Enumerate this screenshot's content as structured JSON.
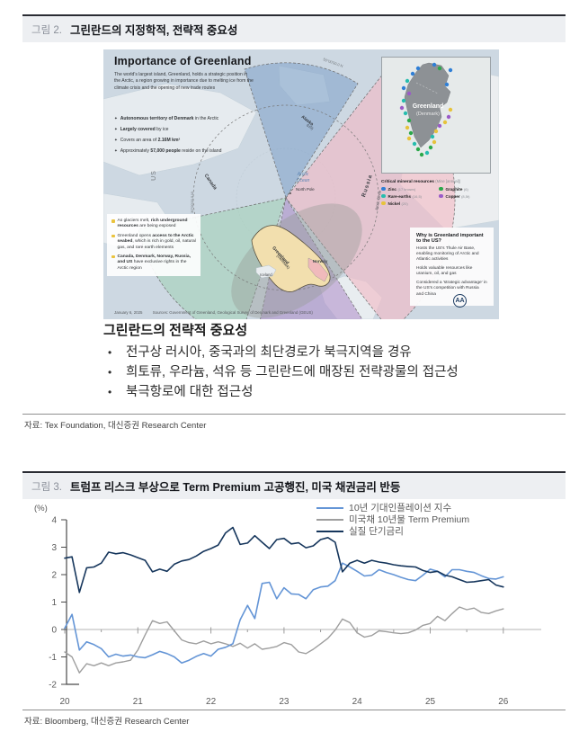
{
  "figure2": {
    "label": "그림 2.",
    "title": "그린란드의 지정학적, 전략적 중요성",
    "source": "자료: Tex Foundation, 대신증권 Research Center",
    "infographic": {
      "title": "Importance of Greenland",
      "intro": "The world's largest island, Greenland, holds a strategic position in the Arctic, a region growing in importance due to melting ice from the climate crisis and the opening of new trade routes",
      "facts": [
        {
          "pre": "",
          "bold": "Autonomous territory of Denmark",
          "rest": " in the Arctic"
        },
        {
          "pre": "",
          "bold": "Largely covered",
          "rest": " by ice"
        },
        {
          "pre": "Covers an area of ",
          "bold": "2.16M km²",
          "rest": ""
        },
        {
          "pre": "Approximately ",
          "bold": "57,000 people",
          "rest": " reside on the island"
        }
      ],
      "notes": [
        {
          "pre": "As glaciers melt, ",
          "bold": "rich underground resources",
          "rest": " are being exposed"
        },
        {
          "pre": "Greenland opens ",
          "bold": "access to the Arctic seabed",
          "rest": ", which is rich in gold, oil, natural gas, and rare earth elements"
        },
        {
          "pre": "",
          "bold": "Canada, Denmark, Norway, Russia, and US",
          "rest": " have exclusive rights in the Arctic region"
        }
      ],
      "map_labels": {
        "us": "US",
        "canada": "Canada",
        "alaska1": "Alaska",
        "alaska2": "(US)",
        "russia": "Russia",
        "norway": "Norway",
        "iceland": "Iceland",
        "north_pole": "North Pole",
        "arctic1": "Arctic",
        "arctic2": "Ocean",
        "arctic_circle": "Arctic Circle",
        "lon": "30°00'00.0 W",
        "lat": "50°00'00.0 N",
        "greenland1": "Greenland",
        "greenland2": "(Denmark)"
      },
      "inset": {
        "label1": "Greenland",
        "label2": "(Denmark)"
      },
      "mineral_legend": {
        "title": "Critical mineral resources",
        "suffix": "(Mine [annual])",
        "items": [
          {
            "name": "Zinc",
            "suffix": "(17 known)",
            "color": "#2f7fd6"
          },
          {
            "name": "Graphite",
            "suffix": "(6)",
            "color": "#2ba84a"
          },
          {
            "name": "Rare-earths",
            "suffix": "(16,5)",
            "color": "#27bdae"
          },
          {
            "name": "Copper",
            "suffix": "(8,5t)",
            "color": "#9a5bc8"
          },
          {
            "name": "Nickel",
            "suffix": "(20)",
            "color": "#e6c33c"
          }
        ]
      },
      "why_box": {
        "title": "Why is Greenland important to the US?",
        "p1": "Hosts the US's Thule Air Base, enabling monitoring of Arctic and Atlantic activities",
        "p2": "Holds valuable resources like uranium, oil, and gas",
        "p3": "Considered a 'strategic advantage' in the US's competition with Russia and China"
      },
      "date": "January 6, 2025",
      "sources": "Sources: Government of Greenland, Geological Survey of Denmark and Greenland (GEUS)",
      "logo": "AA"
    },
    "summary": {
      "heading": "그린란드의 전략적 중요성",
      "bullets": [
        "전구상 러시아, 중국과의 최단경로가 북극지역을 경유",
        "희토류, 우라늄, 석유 등 그린란드에 매장된 전략광물의 접근성",
        "북극항로에 대한 접근성"
      ]
    }
  },
  "figure3": {
    "label": "그림 3.",
    "title": "트럼프 리스크 부상으로 Term Premium 고공행진, 미국 채권금리 반등",
    "source": "자료: Bloomberg, 대신증권 Research Center"
  },
  "chart_data": {
    "type": "line",
    "unit_label": "(%)",
    "xlabel": "",
    "ylabel": "(%)",
    "xlim": [
      20,
      26.55
    ],
    "ylim": [
      -2,
      4
    ],
    "x_ticks": [
      20,
      21,
      22,
      23,
      24,
      25,
      26
    ],
    "y_ticks": [
      -2,
      -1,
      0,
      1,
      2,
      3,
      4
    ],
    "grid": "zero-line-only",
    "legend_position": "top-right",
    "x": [
      20.0,
      20.1,
      20.2,
      20.3,
      20.4,
      20.5,
      20.6,
      20.7,
      20.8,
      20.9,
      21.0,
      21.1,
      21.2,
      21.3,
      21.4,
      21.5,
      21.6,
      21.7,
      21.8,
      21.9,
      22.0,
      22.1,
      22.2,
      22.3,
      22.4,
      22.5,
      22.6,
      22.7,
      22.8,
      22.9,
      23.0,
      23.1,
      23.2,
      23.3,
      23.4,
      23.5,
      23.6,
      23.7,
      23.8,
      23.9,
      24.0,
      24.1,
      24.2,
      24.3,
      24.4,
      24.5,
      24.6,
      24.7,
      24.8,
      24.9,
      25.0,
      25.1,
      25.2,
      25.3,
      25.4,
      25.5,
      25.6,
      25.7,
      25.8,
      25.9,
      26.0
    ],
    "series": [
      {
        "name": "10년 기대인플레이션 지수",
        "color": "#6495d6",
        "values": [
          0.05,
          0.55,
          -0.75,
          -0.45,
          -0.55,
          -0.7,
          -1.0,
          -0.9,
          -0.97,
          -0.93,
          -1.0,
          -1.03,
          -0.92,
          -0.8,
          -0.88,
          -1.0,
          -1.22,
          -1.12,
          -0.98,
          -0.88,
          -0.97,
          -0.72,
          -0.65,
          -0.52,
          0.35,
          0.88,
          0.4,
          1.68,
          1.72,
          1.12,
          1.52,
          1.3,
          1.28,
          1.12,
          1.45,
          1.55,
          1.58,
          1.78,
          2.42,
          2.28,
          2.12,
          1.95,
          1.98,
          2.18,
          2.08,
          2.0,
          1.9,
          1.82,
          1.78,
          1.98,
          2.2,
          2.12,
          1.92,
          2.18,
          2.18,
          2.12,
          2.08,
          1.96,
          1.86,
          1.84,
          1.92
        ]
      },
      {
        "name": "미국채 10년물 Term Premium",
        "color": "#9e9e9e",
        "values": [
          -0.82,
          -1.0,
          -1.58,
          -1.25,
          -1.32,
          -1.22,
          -1.32,
          -1.22,
          -1.18,
          -1.12,
          -0.75,
          -0.2,
          0.32,
          0.22,
          0.28,
          -0.05,
          -0.38,
          -0.48,
          -0.52,
          -0.42,
          -0.52,
          -0.45,
          -0.52,
          -0.62,
          -0.5,
          -0.68,
          -0.52,
          -0.72,
          -0.68,
          -0.62,
          -0.48,
          -0.55,
          -0.82,
          -0.88,
          -0.72,
          -0.52,
          -0.32,
          -0.02,
          0.38,
          0.25,
          -0.12,
          -0.28,
          -0.22,
          -0.05,
          -0.08,
          -0.12,
          -0.15,
          -0.12,
          -0.02,
          0.15,
          0.22,
          0.48,
          0.32,
          0.58,
          0.82,
          0.72,
          0.78,
          0.62,
          0.58,
          0.68,
          0.75
        ]
      },
      {
        "name": "실질 단기금리",
        "color": "#16365c",
        "values": [
          2.6,
          2.65,
          1.35,
          2.25,
          2.28,
          2.42,
          2.82,
          2.76,
          2.8,
          2.72,
          2.62,
          2.52,
          2.1,
          2.2,
          2.12,
          2.38,
          2.5,
          2.55,
          2.68,
          2.85,
          2.95,
          3.08,
          3.52,
          3.72,
          3.1,
          3.15,
          3.42,
          3.18,
          2.95,
          3.28,
          3.32,
          3.12,
          3.16,
          2.98,
          3.05,
          3.28,
          3.35,
          3.18,
          2.1,
          2.42,
          2.52,
          2.42,
          2.52,
          2.46,
          2.42,
          2.36,
          2.32,
          2.3,
          2.28,
          2.15,
          2.08,
          2.12,
          1.98,
          1.92,
          1.82,
          1.72,
          1.74,
          1.78,
          1.82,
          1.62,
          1.55
        ]
      }
    ]
  }
}
